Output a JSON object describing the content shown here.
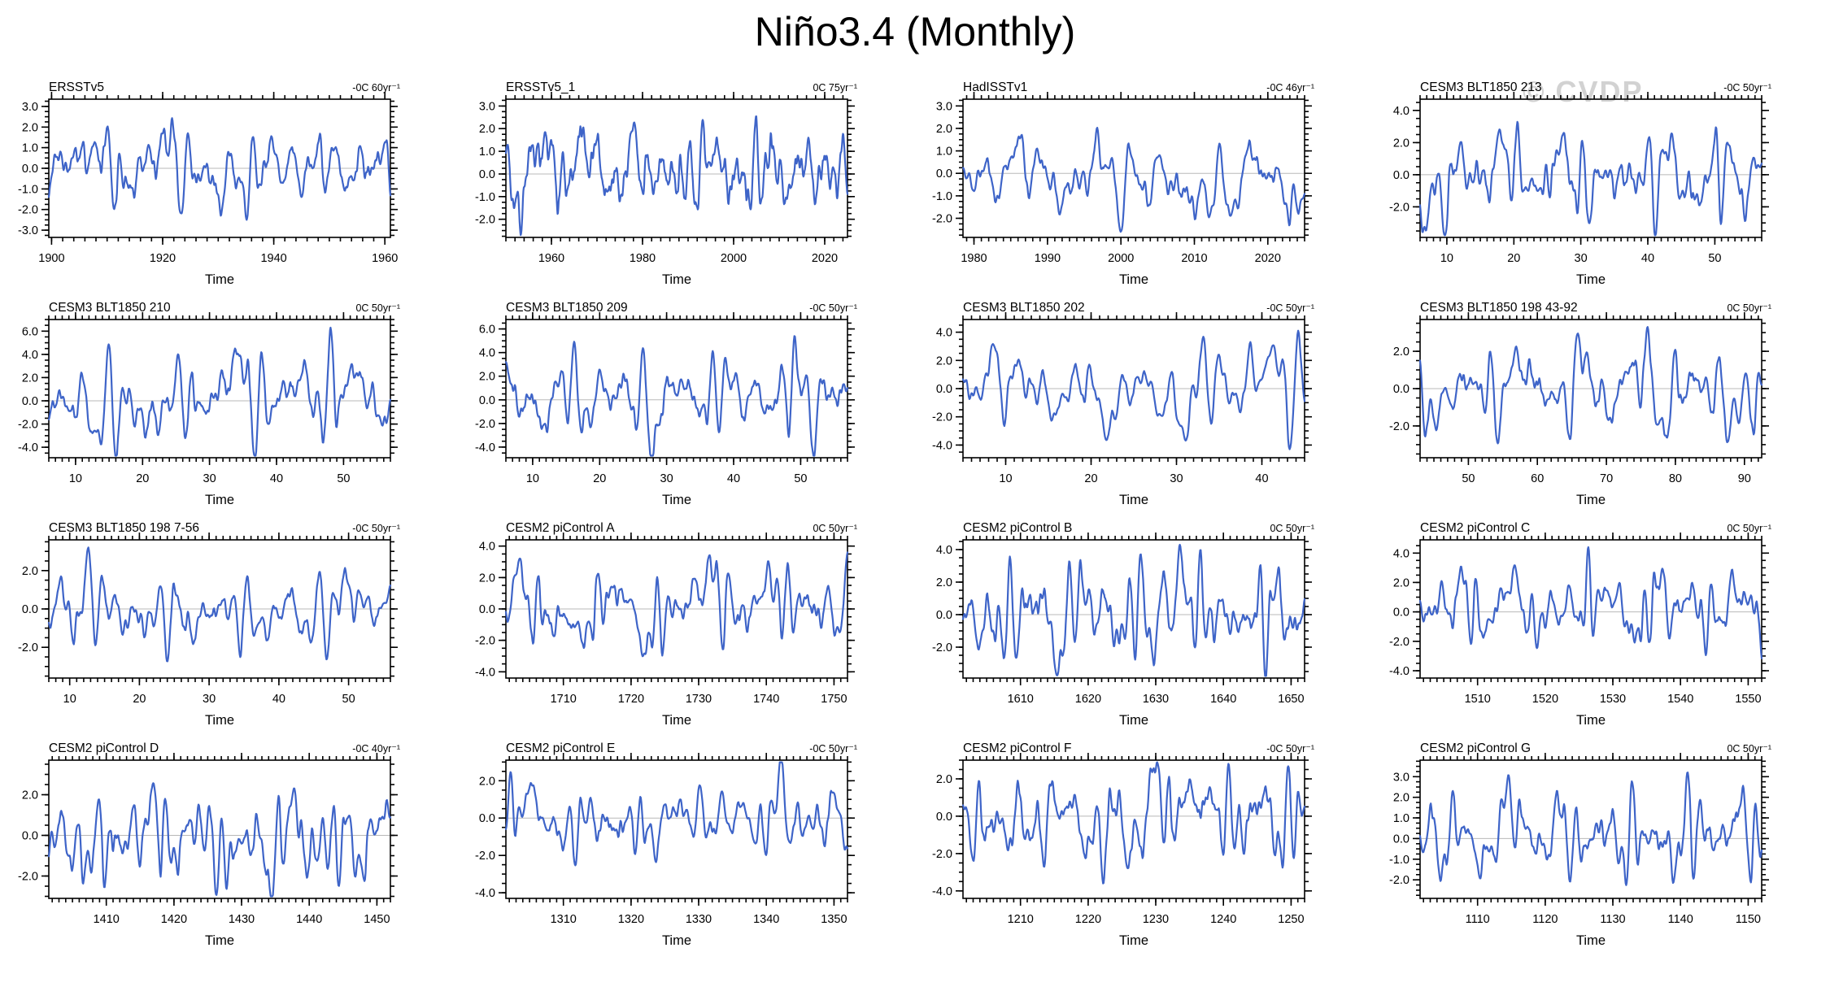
{
  "page": {
    "title": "Niño3.4 (Monthly)",
    "watermark": "© CVDP",
    "xlabel": "Time"
  },
  "colors": {
    "line": "#3e64c8",
    "zero_line": "#b8b8b8",
    "axis": "#000000",
    "watermark": "#d2d2d2",
    "text": "#000000"
  },
  "chart_data": [
    {
      "type": "line",
      "title": "ERSSTv5",
      "trend_label": "-0C 60yr⁻¹",
      "xlabel": "Time",
      "xlim": [
        1899.5,
        1961
      ],
      "xticks": [
        1900,
        1920,
        1940,
        1960
      ],
      "x_minor_step": 2,
      "ylim": [
        -3.35,
        3.35
      ],
      "yticks": [
        3.0,
        2.0,
        1.0,
        0.0,
        -1.0,
        -2.0,
        -3.0
      ],
      "y_minor_step": 0.25,
      "zero_line": true,
      "series_gen": {
        "seed": 3,
        "amp": 2.5,
        "period_months": 46
      }
    },
    {
      "type": "line",
      "title": "ERSSTv5_1",
      "trend_label": "0C 75yr⁻¹",
      "xlabel": "Time",
      "xlim": [
        1950,
        2025
      ],
      "xticks": [
        1960,
        1980,
        2000,
        2020
      ],
      "x_minor_step": 2,
      "ylim": [
        -2.8,
        3.3
      ],
      "yticks": [
        3.0,
        2.0,
        1.0,
        0.0,
        -1.0,
        -2.0
      ],
      "y_minor_step": 0.25,
      "zero_line": true,
      "series_gen": {
        "seed": 7,
        "amp": 2.7,
        "period_months": 46
      }
    },
    {
      "type": "line",
      "title": "HadISSTv1",
      "trend_label": "-0C 46yr⁻¹",
      "xlabel": "Time",
      "xlim": [
        1978.5,
        2025
      ],
      "xticks": [
        1980,
        1990,
        2000,
        2010,
        2020
      ],
      "x_minor_step": 1,
      "ylim": [
        -2.85,
        3.3
      ],
      "yticks": [
        3.0,
        2.0,
        1.0,
        0.0,
        -1.0,
        -2.0
      ],
      "y_minor_step": 0.25,
      "zero_line": true,
      "series_gen": {
        "seed": 11,
        "amp": 2.6,
        "period_months": 48
      }
    },
    {
      "type": "line",
      "title": "CESM3 BLT1850 213",
      "trend_label": "-0C 50yr⁻¹",
      "xlabel": "Time",
      "xlim": [
        6,
        57
      ],
      "xticks": [
        10,
        20,
        30,
        40,
        50
      ],
      "x_minor_step": 1,
      "ylim": [
        -3.9,
        4.7
      ],
      "yticks": [
        4.0,
        2.0,
        0.0,
        -2.0
      ],
      "y_minor_step": 0.5,
      "zero_line": true,
      "series_gen": {
        "seed": 13,
        "amp": 3.9,
        "period_months": 38
      }
    },
    {
      "type": "line",
      "title": "CESM3 BLT1850 210",
      "trend_label": "0C 50yr⁻¹",
      "xlabel": "Time",
      "xlim": [
        6,
        57
      ],
      "xticks": [
        10,
        20,
        30,
        40,
        50
      ],
      "x_minor_step": 1,
      "ylim": [
        -4.9,
        7.0
      ],
      "yticks": [
        6.0,
        4.0,
        2.0,
        0.0,
        -2.0,
        -4.0
      ],
      "y_minor_step": 0.5,
      "zero_line": true,
      "series_gen": {
        "seed": 17,
        "amp": 6.3,
        "period_months": 40
      }
    },
    {
      "type": "line",
      "title": "CESM3 BLT1850 209",
      "trend_label": "-0C 50yr⁻¹",
      "xlabel": "Time",
      "xlim": [
        6,
        57
      ],
      "xticks": [
        10,
        20,
        30,
        40,
        50
      ],
      "x_minor_step": 1,
      "ylim": [
        -4.9,
        6.8
      ],
      "yticks": [
        6.0,
        4.0,
        2.0,
        0.0,
        -2.0,
        -4.0
      ],
      "y_minor_step": 0.5,
      "zero_line": true,
      "series_gen": {
        "seed": 19,
        "amp": 5.4,
        "period_months": 40
      }
    },
    {
      "type": "line",
      "title": "CESM3 BLT1850 202",
      "trend_label": "-0C 50yr⁻¹",
      "xlabel": "Time",
      "xlim": [
        5,
        45
      ],
      "xticks": [
        10,
        20,
        30,
        40
      ],
      "x_minor_step": 1,
      "ylim": [
        -4.9,
        4.9
      ],
      "yticks": [
        4.0,
        2.0,
        0.0,
        -2.0,
        -4.0
      ],
      "y_minor_step": 0.5,
      "zero_line": true,
      "series_gen": {
        "seed": 23,
        "amp": 4.3,
        "period_months": 36
      }
    },
    {
      "type": "line",
      "title": "CESM3 BLT1850 198 43-92",
      "trend_label": "0C 50yr⁻¹",
      "xlabel": "Time",
      "xlim": [
        43,
        92.5
      ],
      "xticks": [
        50,
        60,
        70,
        80,
        90
      ],
      "x_minor_step": 1,
      "ylim": [
        -3.7,
        3.7
      ],
      "yticks": [
        2.0,
        0.0,
        -2.0
      ],
      "y_minor_step": 0.5,
      "zero_line": true,
      "series_gen": {
        "seed": 29,
        "amp": 3.3,
        "period_months": 40
      }
    },
    {
      "type": "line",
      "title": "CESM3 BLT1850 198 7-56",
      "trend_label": "-0C 50yr⁻¹",
      "xlabel": "Time",
      "xlim": [
        7,
        56
      ],
      "xticks": [
        10,
        20,
        30,
        40,
        50
      ],
      "x_minor_step": 1,
      "ylim": [
        -3.6,
        3.6
      ],
      "yticks": [
        2.0,
        0.0,
        -2.0
      ],
      "y_minor_step": 0.5,
      "zero_line": true,
      "series_gen": {
        "seed": 31,
        "amp": 3.2,
        "period_months": 40
      }
    },
    {
      "type": "line",
      "title": "CESM2 piControl A",
      "trend_label": "0C 50yr⁻¹",
      "xlabel": "Time",
      "xlim": [
        1701.5,
        1752
      ],
      "xticks": [
        1710,
        1720,
        1730,
        1740,
        1750
      ],
      "x_minor_step": 1,
      "ylim": [
        -4.4,
        4.4
      ],
      "yticks": [
        4.0,
        2.0,
        0.0,
        -2.0,
        -4.0
      ],
      "y_minor_step": 0.5,
      "zero_line": true,
      "series_gen": {
        "seed": 37,
        "amp": 3.6,
        "period_months": 34
      }
    },
    {
      "type": "line",
      "title": "CESM2 piControl B",
      "trend_label": "0C 50yr⁻¹",
      "xlabel": "Time",
      "xlim": [
        1601.5,
        1652
      ],
      "xticks": [
        1610,
        1620,
        1630,
        1640,
        1650
      ],
      "x_minor_step": 1,
      "ylim": [
        -3.9,
        4.6
      ],
      "yticks": [
        4.0,
        2.0,
        0.0,
        -2.0
      ],
      "y_minor_step": 0.5,
      "zero_line": true,
      "series_gen": {
        "seed": 41,
        "amp": 4.3,
        "period_months": 34
      }
    },
    {
      "type": "line",
      "title": "CESM2 piControl C",
      "trend_label": "0C 50yr⁻¹",
      "xlabel": "Time",
      "xlim": [
        1501.5,
        1552
      ],
      "xticks": [
        1510,
        1520,
        1530,
        1540,
        1550
      ],
      "x_minor_step": 1,
      "ylim": [
        -4.5,
        4.9
      ],
      "yticks": [
        4.0,
        2.0,
        0.0,
        -2.0,
        -4.0
      ],
      "y_minor_step": 0.5,
      "zero_line": true,
      "series_gen": {
        "seed": 43,
        "amp": 4.4,
        "period_months": 32
      }
    },
    {
      "type": "line",
      "title": "CESM2 piControl D",
      "trend_label": "-0C 40yr⁻¹",
      "xlabel": "Time",
      "xlim": [
        1401.5,
        1452
      ],
      "xticks": [
        1410,
        1420,
        1430,
        1440,
        1450
      ],
      "x_minor_step": 1,
      "ylim": [
        -3.1,
        3.7
      ],
      "yticks": [
        2.0,
        0.0,
        -2.0
      ],
      "y_minor_step": 0.5,
      "zero_line": true,
      "series_gen": {
        "seed": 47,
        "amp": 3.3,
        "period_months": 32
      }
    },
    {
      "type": "line",
      "title": "CESM2 piControl E",
      "trend_label": "-0C 50yr⁻¹",
      "xlabel": "Time",
      "xlim": [
        1301.5,
        1352
      ],
      "xticks": [
        1310,
        1320,
        1330,
        1340,
        1350
      ],
      "x_minor_step": 1,
      "ylim": [
        -4.3,
        3.1
      ],
      "yticks": [
        2.0,
        0.0,
        -2.0,
        -4.0
      ],
      "y_minor_step": 0.5,
      "zero_line": true,
      "series_gen": {
        "seed": 53,
        "amp": 3.5,
        "period_months": 34
      }
    },
    {
      "type": "line",
      "title": "CESM2 piControl F",
      "trend_label": "-0C 50yr⁻¹",
      "xlabel": "Time",
      "xlim": [
        1201.5,
        1252
      ],
      "xticks": [
        1210,
        1220,
        1230,
        1240,
        1250
      ],
      "x_minor_step": 1,
      "ylim": [
        -4.4,
        3.0
      ],
      "yticks": [
        2.0,
        0.0,
        -2.0,
        -4.0
      ],
      "y_minor_step": 0.5,
      "zero_line": true,
      "series_gen": {
        "seed": 59,
        "amp": 3.6,
        "period_months": 34
      }
    },
    {
      "type": "line",
      "title": "CESM2 piControl G",
      "trend_label": "0C 50yr⁻¹",
      "xlabel": "Time",
      "xlim": [
        1101.5,
        1152
      ],
      "xticks": [
        1110,
        1120,
        1130,
        1140,
        1150
      ],
      "x_minor_step": 1,
      "ylim": [
        -2.9,
        3.8
      ],
      "yticks": [
        3.0,
        2.0,
        1.0,
        0.0,
        -1.0,
        -2.0
      ],
      "y_minor_step": 0.25,
      "zero_line": true,
      "series_gen": {
        "seed": 61,
        "amp": 3.2,
        "period_months": 32
      }
    }
  ]
}
